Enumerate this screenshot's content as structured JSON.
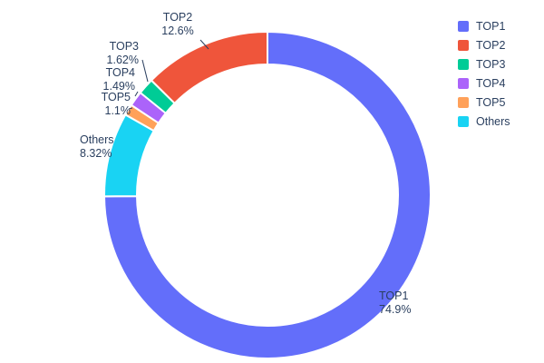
{
  "chart_data": {
    "type": "pie",
    "subtype": "donut",
    "title": "",
    "categories": [
      "TOP1",
      "TOP2",
      "TOP3",
      "TOP4",
      "TOP5",
      "Others"
    ],
    "values": [
      74.9,
      12.6,
      1.62,
      1.49,
      1.1,
      8.32
    ],
    "labels_pct": [
      "74.9%",
      "12.6%",
      "1.62%",
      "1.49%",
      "1.1%",
      "8.32%"
    ],
    "colors": [
      "#636efa",
      "#ef553b",
      "#00cc96",
      "#ab63fa",
      "#ffa15a",
      "#19d3f3"
    ],
    "hole_ratio": 0.8,
    "start_angle_deg": 0,
    "draw_order_clockwise_from_top": [
      "TOP1",
      "Others",
      "TOP5",
      "TOP4",
      "TOP3",
      "TOP2"
    ],
    "legend": {
      "position": "right",
      "entries": [
        "TOP1",
        "TOP2",
        "TOP3",
        "TOP4",
        "TOP5",
        "Others"
      ]
    },
    "text_color": "#2a3f5f",
    "slice_outline_color": "#ffffff"
  }
}
